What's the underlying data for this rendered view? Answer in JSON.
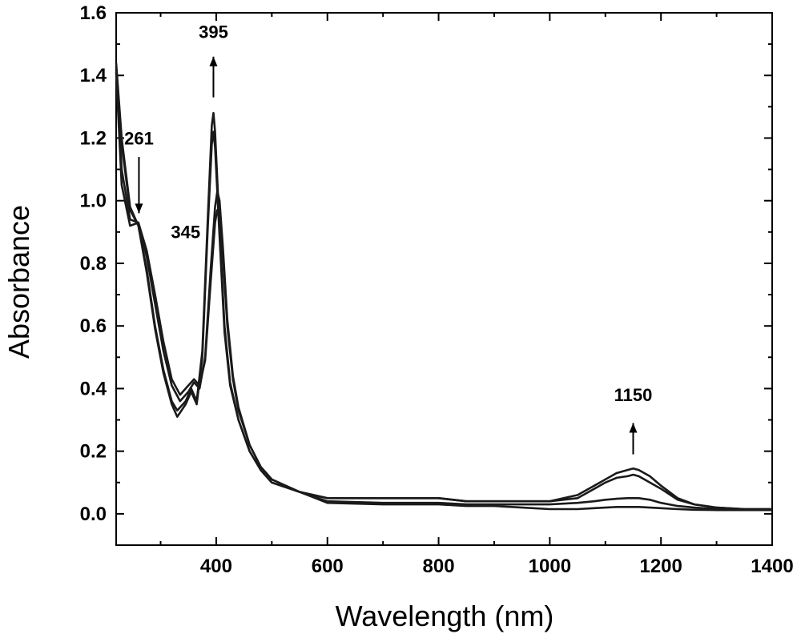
{
  "chart_data": {
    "type": "line",
    "title": "",
    "xlabel": "Wavelength (nm)",
    "ylabel": "Absorbance",
    "xlim": [
      220,
      1400
    ],
    "ylim": [
      -0.1,
      1.6
    ],
    "xticks": [
      400,
      600,
      800,
      1000,
      1200,
      1400
    ],
    "xtick_labels": [
      "400",
      "600",
      "800",
      "1000",
      "1200",
      "1400"
    ],
    "yticks": [
      0.0,
      0.2,
      0.4,
      0.6,
      0.8,
      1.0,
      1.2,
      1.4,
      1.6
    ],
    "ytick_labels": [
      "0.0",
      "0.2",
      "0.4",
      "0.6",
      "0.8",
      "1.0",
      "1.2",
      "1.4",
      "1.6"
    ],
    "grid": false,
    "legend": "none",
    "line_color": "#1a1a1a",
    "series": [
      {
        "x": [
          220,
          230,
          245,
          260,
          275,
          290,
          305,
          320,
          330,
          345,
          355,
          365,
          375,
          385,
          392,
          395,
          398,
          405,
          415,
          425,
          440,
          460,
          480,
          500,
          550,
          600,
          700,
          800,
          850,
          900,
          1000,
          1050,
          1080,
          1100,
          1120,
          1140,
          1150,
          1160,
          1180,
          1200,
          1230,
          1260,
          1300,
          1350,
          1400
        ],
        "y": [
          1.44,
          1.2,
          0.98,
          0.92,
          0.78,
          0.6,
          0.46,
          0.36,
          0.33,
          0.36,
          0.4,
          0.36,
          0.52,
          0.95,
          1.24,
          1.28,
          1.22,
          0.95,
          0.6,
          0.42,
          0.3,
          0.2,
          0.14,
          0.1,
          0.07,
          0.05,
          0.05,
          0.05,
          0.04,
          0.04,
          0.04,
          0.06,
          0.09,
          0.11,
          0.13,
          0.14,
          0.145,
          0.14,
          0.12,
          0.09,
          0.05,
          0.03,
          0.02,
          0.015,
          0.015
        ]
      },
      {
        "x": [
          220,
          230,
          245,
          260,
          275,
          290,
          305,
          320,
          330,
          345,
          355,
          365,
          375,
          385,
          392,
          395,
          398,
          405,
          415,
          425,
          440,
          460,
          480,
          500,
          550,
          600,
          700,
          800,
          850,
          900,
          1000,
          1050,
          1080,
          1100,
          1120,
          1140,
          1150,
          1160,
          1180,
          1200,
          1230,
          1260,
          1300,
          1350,
          1400
        ],
        "y": [
          1.43,
          1.18,
          0.97,
          0.92,
          0.77,
          0.59,
          0.45,
          0.35,
          0.31,
          0.35,
          0.39,
          0.35,
          0.5,
          0.92,
          1.18,
          1.22,
          1.17,
          0.92,
          0.58,
          0.41,
          0.3,
          0.2,
          0.14,
          0.1,
          0.07,
          0.05,
          0.05,
          0.05,
          0.04,
          0.04,
          0.04,
          0.05,
          0.08,
          0.1,
          0.115,
          0.12,
          0.125,
          0.12,
          0.1,
          0.08,
          0.045,
          0.03,
          0.02,
          0.015,
          0.015
        ]
      },
      {
        "x": [
          220,
          230,
          245,
          260,
          275,
          290,
          305,
          320,
          335,
          350,
          360,
          370,
          380,
          390,
          398,
          402,
          406,
          412,
          420,
          430,
          440,
          460,
          480,
          500,
          550,
          600,
          700,
          800,
          850,
          900,
          1000,
          1050,
          1080,
          1100,
          1120,
          1140,
          1150,
          1160,
          1180,
          1200,
          1230,
          1260,
          1300,
          1350,
          1400
        ],
        "y": [
          1.42,
          1.1,
          0.94,
          0.93,
          0.82,
          0.67,
          0.52,
          0.41,
          0.36,
          0.39,
          0.42,
          0.4,
          0.5,
          0.78,
          0.98,
          1.03,
          1.0,
          0.85,
          0.62,
          0.44,
          0.34,
          0.22,
          0.15,
          0.11,
          0.07,
          0.04,
          0.035,
          0.035,
          0.03,
          0.03,
          0.03,
          0.035,
          0.04,
          0.045,
          0.048,
          0.05,
          0.05,
          0.05,
          0.045,
          0.035,
          0.025,
          0.02,
          0.015,
          0.012,
          0.012
        ]
      },
      {
        "x": [
          220,
          230,
          245,
          260,
          275,
          290,
          305,
          320,
          335,
          350,
          360,
          370,
          380,
          390,
          398,
          402,
          406,
          412,
          420,
          430,
          440,
          460,
          480,
          500,
          550,
          600,
          700,
          800,
          850,
          900,
          1000,
          1050,
          1080,
          1100,
          1120,
          1140,
          1150,
          1160,
          1180,
          1200,
          1230,
          1260,
          1300,
          1350,
          1400
        ],
        "y": [
          1.41,
          1.05,
          0.92,
          0.93,
          0.84,
          0.7,
          0.55,
          0.43,
          0.38,
          0.41,
          0.43,
          0.41,
          0.49,
          0.74,
          0.93,
          0.97,
          0.95,
          0.82,
          0.6,
          0.43,
          0.33,
          0.22,
          0.15,
          0.11,
          0.07,
          0.035,
          0.03,
          0.03,
          0.025,
          0.025,
          0.015,
          0.015,
          0.018,
          0.02,
          0.022,
          0.022,
          0.022,
          0.022,
          0.02,
          0.018,
          0.015,
          0.013,
          0.012,
          0.012,
          0.012
        ]
      }
    ],
    "annotations": [
      {
        "text": "395",
        "x": 395,
        "y": 1.52,
        "arrow": "up",
        "arrow_from": 1.33,
        "arrow_to": 1.46
      },
      {
        "text": "261",
        "x": 261,
        "y": 1.18,
        "arrow": "down",
        "arrow_from": 1.14,
        "arrow_to": 0.96
      },
      {
        "text": "345",
        "x": 345,
        "y": 0.88,
        "arrow": "none"
      },
      {
        "text": "1150",
        "x": 1150,
        "y": 0.36,
        "arrow": "up",
        "arrow_from": 0.19,
        "arrow_to": 0.29
      }
    ]
  }
}
